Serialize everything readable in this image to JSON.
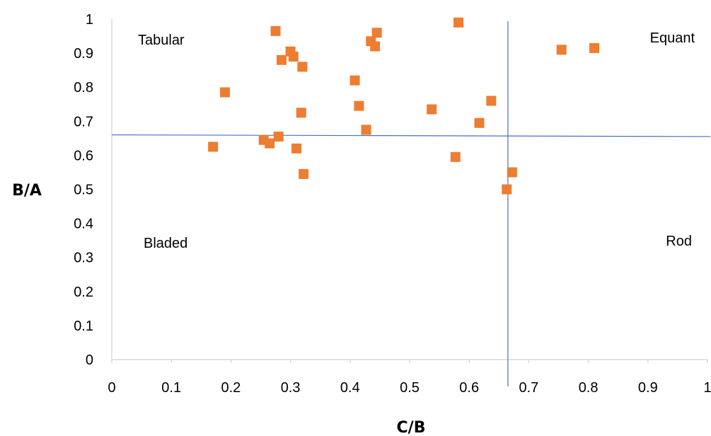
{
  "chart_data": {
    "type": "scatter",
    "title": "",
    "xlabel": "C/B",
    "ylabel": "B/A",
    "xlim": [
      0,
      1
    ],
    "ylim": [
      0,
      1
    ],
    "x_ticks": [
      {
        "value": 0,
        "label": "0"
      },
      {
        "value": 0.1,
        "label": "0.1"
      },
      {
        "value": 0.2,
        "label": "0.2"
      },
      {
        "value": 0.3,
        "label": "0.3"
      },
      {
        "value": 0.4,
        "label": "0.4"
      },
      {
        "value": 0.5,
        "label": "0.5"
      },
      {
        "value": 0.6,
        "label": "0.6"
      },
      {
        "value": 0.7,
        "label": "0.7"
      },
      {
        "value": 0.8,
        "label": "0.8"
      },
      {
        "value": 0.9,
        "label": "0.9"
      },
      {
        "value": 1,
        "label": "1"
      }
    ],
    "y_ticks": [
      {
        "value": 0,
        "label": "0"
      },
      {
        "value": 0.1,
        "label": "0.1"
      },
      {
        "value": 0.2,
        "label": "0.2"
      },
      {
        "value": 0.3,
        "label": "0.3"
      },
      {
        "value": 0.4,
        "label": "0.4"
      },
      {
        "value": 0.5,
        "label": "0.5"
      },
      {
        "value": 0.6,
        "label": "0.6"
      },
      {
        "value": 0.7,
        "label": "0.7"
      },
      {
        "value": 0.8,
        "label": "0.8"
      },
      {
        "value": 0.9,
        "label": "0.9"
      },
      {
        "value": 1,
        "label": "1"
      }
    ],
    "grid": false,
    "legend": "none",
    "marker": "square",
    "marker_color": "#ED7D31",
    "divider_color": "#4472C4",
    "dividers": {
      "vertical_x": 0.665,
      "horizontal_y_start": 0.66,
      "horizontal_y_end": 0.655
    },
    "regions": [
      {
        "label": "Tabular",
        "position": "top-left"
      },
      {
        "label": "Equant",
        "position": "top-right"
      },
      {
        "label": "Bladed",
        "position": "bottom-left"
      },
      {
        "label": "Rod",
        "position": "bottom-right"
      }
    ],
    "series": [
      {
        "points": [
          {
            "x": 0.17,
            "y": 0.625
          },
          {
            "x": 0.19,
            "y": 0.785
          },
          {
            "x": 0.255,
            "y": 0.645
          },
          {
            "x": 0.265,
            "y": 0.635
          },
          {
            "x": 0.275,
            "y": 0.965
          },
          {
            "x": 0.28,
            "y": 0.655
          },
          {
            "x": 0.285,
            "y": 0.88
          },
          {
            "x": 0.3,
            "y": 0.905
          },
          {
            "x": 0.305,
            "y": 0.89
          },
          {
            "x": 0.31,
            "y": 0.62
          },
          {
            "x": 0.318,
            "y": 0.725
          },
          {
            "x": 0.32,
            "y": 0.86
          },
          {
            "x": 0.322,
            "y": 0.545
          },
          {
            "x": 0.408,
            "y": 0.82
          },
          {
            "x": 0.415,
            "y": 0.745
          },
          {
            "x": 0.427,
            "y": 0.675
          },
          {
            "x": 0.435,
            "y": 0.935
          },
          {
            "x": 0.442,
            "y": 0.92
          },
          {
            "x": 0.445,
            "y": 0.96
          },
          {
            "x": 0.537,
            "y": 0.735
          },
          {
            "x": 0.577,
            "y": 0.595
          },
          {
            "x": 0.582,
            "y": 0.99
          },
          {
            "x": 0.617,
            "y": 0.695
          },
          {
            "x": 0.637,
            "y": 0.76
          },
          {
            "x": 0.663,
            "y": 0.5
          },
          {
            "x": 0.672,
            "y": 0.55
          },
          {
            "x": 0.755,
            "y": 0.91
          },
          {
            "x": 0.81,
            "y": 0.915
          }
        ]
      }
    ]
  }
}
